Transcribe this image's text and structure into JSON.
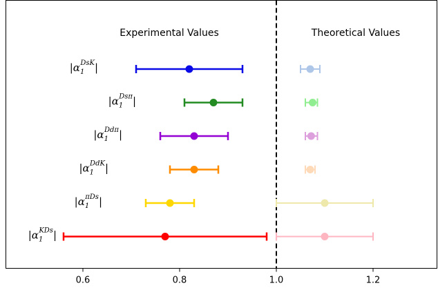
{
  "chart_data": {
    "type": "scatter",
    "title": "",
    "xlabel": "",
    "ylabel": "",
    "xlim": [
      0.45,
      1.33
    ],
    "xticks": [
      {
        "value": 0.6,
        "label": "0.6"
      },
      {
        "value": 0.8,
        "label": "0.8"
      },
      {
        "value": 1.0,
        "label": "1.0"
      },
      {
        "value": 1.2,
        "label": "1.2"
      }
    ],
    "divider_x": 1.0,
    "annotations": {
      "experimental": "Experimental Values",
      "theoretical": "Theoretical Values"
    },
    "rows": [
      {
        "label_base": "|α",
        "label_sub": "1",
        "label_sup": "DsK",
        "label_end": "|",
        "color": "#0a0ae6",
        "theory_color": "#aec7e8",
        "exp": {
          "value": 0.82,
          "low": 0.71,
          "high": 0.93
        },
        "theory": {
          "value": 1.07,
          "low": 1.05,
          "high": 1.09
        }
      },
      {
        "label_base": "|α",
        "label_sub": "1",
        "label_sup": "Dsπ",
        "label_end": "|",
        "color": "#228b22",
        "theory_color": "#90ee90",
        "exp": {
          "value": 0.87,
          "low": 0.81,
          "high": 0.93
        },
        "theory": {
          "value": 1.075,
          "low": 1.06,
          "high": 1.085
        }
      },
      {
        "label_base": "|α",
        "label_sub": "1",
        "label_sup": "Ddπ",
        "label_end": "|",
        "color": "#9400d3",
        "theory_color": "#dda0dd",
        "exp": {
          "value": 0.83,
          "low": 0.76,
          "high": 0.9
        },
        "theory": {
          "value": 1.072,
          "low": 1.06,
          "high": 1.085
        }
      },
      {
        "label_base": "|α",
        "label_sub": "1",
        "label_sup": "DdK",
        "label_end": "|",
        "color": "#ff8c00",
        "theory_color": "#ffdab9",
        "exp": {
          "value": 0.83,
          "low": 0.78,
          "high": 0.88
        },
        "theory": {
          "value": 1.07,
          "low": 1.06,
          "high": 1.08
        }
      },
      {
        "label_base": "|α",
        "label_sub": "1",
        "label_sup": "πDs",
        "label_end": "|",
        "color": "#ffd700",
        "theory_color": "#eee8aa",
        "exp": {
          "value": 0.78,
          "low": 0.73,
          "high": 0.83
        },
        "theory": {
          "value": 1.1,
          "low": 1.0,
          "high": 1.2
        }
      },
      {
        "label_base": "|α",
        "label_sub": "1",
        "label_sup": "KDs",
        "label_end": "|",
        "color": "#ff0000",
        "theory_color": "#ffb6c1",
        "exp": {
          "value": 0.77,
          "low": 0.56,
          "high": 0.98
        },
        "theory": {
          "value": 1.1,
          "low": 1.0,
          "high": 1.2
        }
      }
    ]
  }
}
